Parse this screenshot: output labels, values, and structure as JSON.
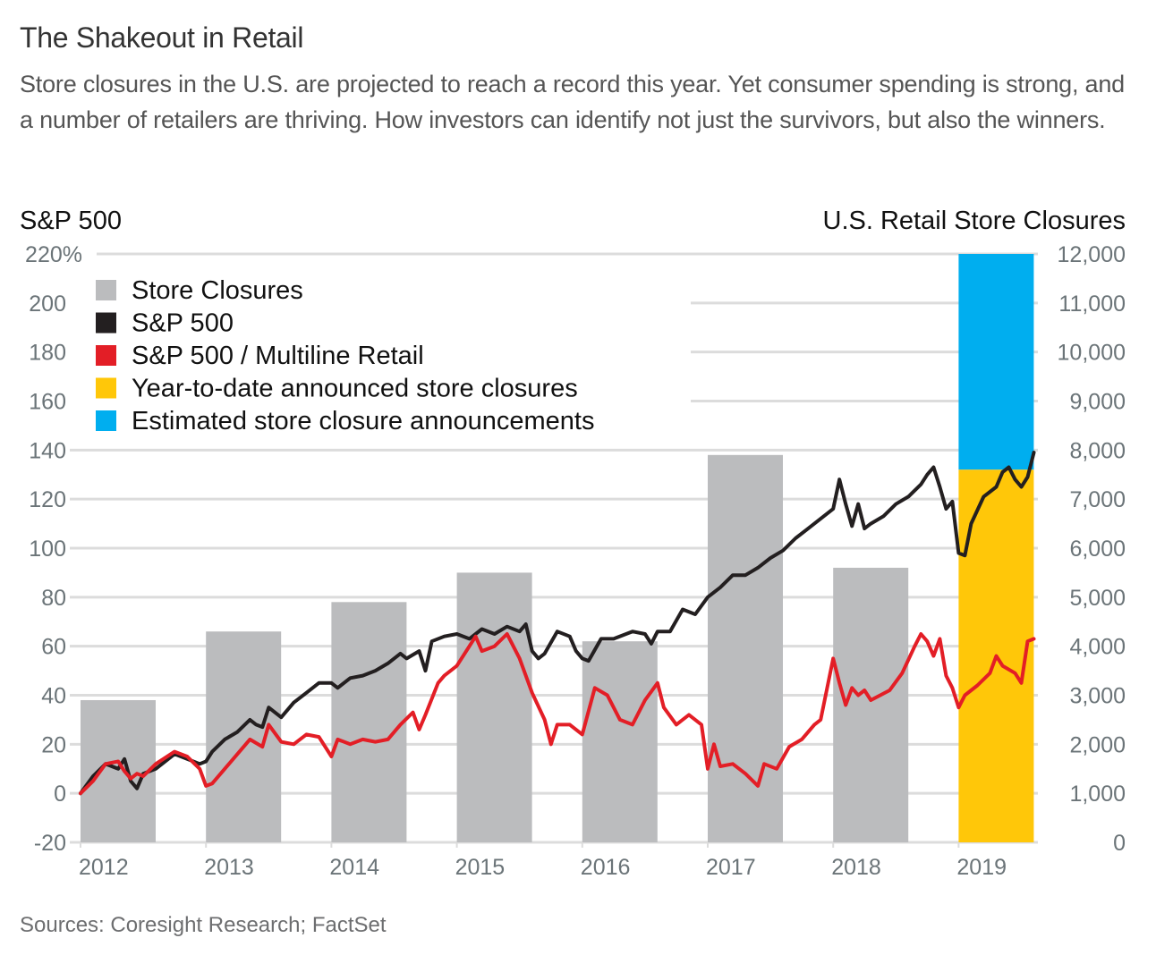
{
  "header": {
    "title": "The Shakeout in Retail",
    "subtitle": "Store closures in the U.S. are projected to reach a record this year. Yet consumer spending is strong, and a number of retailers are thriving. How investors can identify not just the survivors, but also the winners."
  },
  "footer": {
    "source": "Sources: Coresight Research; FactSet"
  },
  "colors": {
    "store_closures": "#bbbcbe",
    "sp500": "#231f20",
    "sp500_multiline": "#e31e26",
    "ytd": "#ffc709",
    "estimated": "#00aeef",
    "grid": "#dcdcdc",
    "tick": "#6b7478"
  },
  "chart_data": {
    "type": "bar+line",
    "title": "The Shakeout in Retail",
    "left_axis": {
      "label": "S&P 500",
      "ylim": [
        -20,
        220
      ],
      "ticks": [
        -20,
        0,
        20,
        40,
        60,
        80,
        100,
        120,
        140,
        160,
        180,
        200,
        220
      ],
      "tick_labels": [
        "-20",
        "0",
        "20",
        "40",
        "60",
        "80",
        "100",
        "120",
        "140",
        "160",
        "180",
        "200",
        "220%"
      ]
    },
    "right_axis": {
      "label": "U.S. Retail Store Closures",
      "ylim": [
        0,
        12000
      ],
      "ticks": [
        0,
        1000,
        2000,
        3000,
        4000,
        5000,
        6000,
        7000,
        8000,
        9000,
        10000,
        11000,
        12000
      ],
      "tick_labels": [
        "0",
        "1,000",
        "2,000",
        "3,000",
        "4,000",
        "5,000",
        "6,000",
        "7,000",
        "8,000",
        "9,000",
        "10,000",
        "11,000",
        "12,000"
      ]
    },
    "x_axis": {
      "categories": [
        "2012",
        "2013",
        "2014",
        "2015",
        "2016",
        "2017",
        "2018",
        "2019"
      ],
      "xlim": [
        2012,
        2019.6
      ]
    },
    "grid": true,
    "legend": {
      "placement": "top-left",
      "entries": [
        {
          "label": "Store Closures",
          "color": "#bbbcbe"
        },
        {
          "label": "S&P 500",
          "color": "#231f20"
        },
        {
          "label": "S&P 500 / Multiline Retail",
          "color": "#e31e26"
        },
        {
          "label": "Year-to-date announced store closures",
          "color": "#ffc709"
        },
        {
          "label": "Estimated store closure announcements",
          "color": "#00aeef"
        }
      ]
    },
    "bars": {
      "name": "Store Closures",
      "axis": "right",
      "categories": [
        "2012",
        "2013",
        "2014",
        "2015",
        "2016",
        "2017",
        "2018"
      ],
      "values": [
        2900,
        4300,
        4900,
        5500,
        4100,
        7900,
        5600
      ]
    },
    "bar_2019": {
      "category": "2019",
      "ytd_announced": 7600,
      "estimated_total": 12000
    },
    "series": [
      {
        "name": "S&P 500",
        "axis": "left",
        "x": [
          2012.0,
          2012.1,
          2012.2,
          2012.3,
          2012.35,
          2012.4,
          2012.45,
          2012.5,
          2012.6,
          2012.75,
          2012.85,
          2012.95,
          2013.0,
          2013.05,
          2013.15,
          2013.25,
          2013.35,
          2013.4,
          2013.45,
          2013.5,
          2013.6,
          2013.7,
          2013.8,
          2013.9,
          2014.0,
          2014.05,
          2014.15,
          2014.25,
          2014.35,
          2014.45,
          2014.55,
          2014.6,
          2014.7,
          2014.75,
          2014.8,
          2014.9,
          2015.0,
          2015.1,
          2015.2,
          2015.3,
          2015.4,
          2015.5,
          2015.55,
          2015.6,
          2015.65,
          2015.7,
          2015.8,
          2015.9,
          2015.95,
          2016.0,
          2016.05,
          2016.15,
          2016.25,
          2016.4,
          2016.5,
          2016.55,
          2016.6,
          2016.7,
          2016.8,
          2016.9,
          2017.0,
          2017.1,
          2017.2,
          2017.3,
          2017.4,
          2017.5,
          2017.6,
          2017.7,
          2017.8,
          2017.9,
          2018.0,
          2018.05,
          2018.1,
          2018.15,
          2018.2,
          2018.25,
          2018.3,
          2018.4,
          2018.5,
          2018.6,
          2018.7,
          2018.75,
          2018.8,
          2018.85,
          2018.9,
          2018.95,
          2019.0,
          2019.05,
          2019.1,
          2019.2,
          2019.3,
          2019.35,
          2019.4,
          2019.45,
          2019.5,
          2019.55,
          2019.6
        ],
        "values": [
          0,
          7,
          12,
          10,
          14,
          5,
          2,
          8,
          10,
          16,
          14,
          12,
          13,
          17,
          22,
          25,
          30,
          28,
          27,
          35,
          31,
          37,
          41,
          45,
          45,
          43,
          47,
          48,
          50,
          53,
          57,
          55,
          58,
          50,
          62,
          64,
          65,
          63,
          67,
          65,
          68,
          66,
          69,
          58,
          55,
          57,
          66,
          64,
          58,
          55,
          54,
          63,
          63,
          66,
          65,
          61,
          66,
          66,
          75,
          73,
          80,
          84,
          89,
          89,
          92,
          96,
          99,
          104,
          108,
          112,
          116,
          128,
          118,
          109,
          118,
          108,
          110,
          113,
          118,
          121,
          126,
          130,
          133,
          125,
          116,
          119,
          98,
          97,
          110,
          121,
          125,
          131,
          133,
          128,
          125,
          129,
          139
        ]
      },
      {
        "name": "S&P 500 / Multiline Retail",
        "axis": "left",
        "x": [
          2012.0,
          2012.1,
          2012.2,
          2012.3,
          2012.35,
          2012.4,
          2012.45,
          2012.5,
          2012.6,
          2012.75,
          2012.85,
          2012.95,
          2013.0,
          2013.05,
          2013.15,
          2013.25,
          2013.35,
          2013.45,
          2013.5,
          2013.6,
          2013.7,
          2013.8,
          2013.9,
          2014.0,
          2014.05,
          2014.15,
          2014.25,
          2014.35,
          2014.45,
          2014.55,
          2014.65,
          2014.7,
          2014.75,
          2014.85,
          2014.9,
          2015.0,
          2015.1,
          2015.15,
          2015.2,
          2015.3,
          2015.4,
          2015.45,
          2015.5,
          2015.6,
          2015.7,
          2015.75,
          2015.8,
          2015.9,
          2016.0,
          2016.1,
          2016.2,
          2016.3,
          2016.4,
          2016.5,
          2016.6,
          2016.65,
          2016.75,
          2016.85,
          2016.95,
          2017.0,
          2017.05,
          2017.1,
          2017.2,
          2017.3,
          2017.4,
          2017.45,
          2017.55,
          2017.65,
          2017.75,
          2017.85,
          2017.9,
          2018.0,
          2018.05,
          2018.1,
          2018.15,
          2018.2,
          2018.25,
          2018.3,
          2018.45,
          2018.55,
          2018.65,
          2018.7,
          2018.75,
          2018.8,
          2018.85,
          2018.9,
          2018.95,
          2019.0,
          2019.05,
          2019.15,
          2019.25,
          2019.3,
          2019.35,
          2019.45,
          2019.5,
          2019.55,
          2019.6
        ],
        "values": [
          0,
          5,
          12,
          13,
          9,
          6,
          8,
          7,
          12,
          17,
          15,
          10,
          3,
          4,
          10,
          16,
          22,
          19,
          28,
          21,
          20,
          24,
          23,
          15,
          22,
          20,
          22,
          21,
          22,
          28,
          33,
          26,
          32,
          45,
          48,
          52,
          60,
          64,
          58,
          60,
          65,
          60,
          55,
          41,
          30,
          20,
          28,
          28,
          24,
          43,
          40,
          30,
          28,
          38,
          45,
          35,
          28,
          32,
          28,
          10,
          20,
          11,
          12,
          8,
          3,
          12,
          10,
          19,
          22,
          28,
          30,
          55,
          45,
          36,
          43,
          40,
          42,
          38,
          42,
          49,
          60,
          65,
          62,
          56,
          63,
          48,
          43,
          35,
          40,
          44,
          49,
          56,
          52,
          49,
          45,
          62,
          63
        ]
      }
    ]
  }
}
